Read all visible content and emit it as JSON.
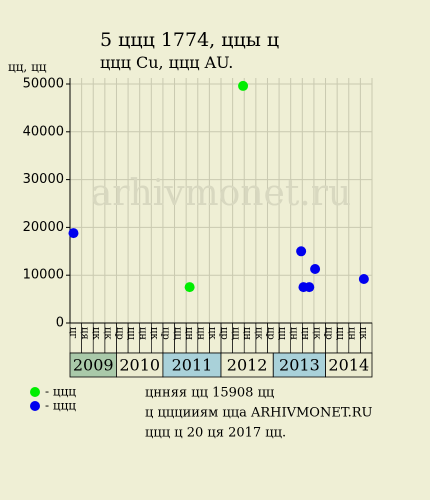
{
  "chart_data": {
    "type": "scatter",
    "title": "5 ццц 1774, ццы ц",
    "subtitle": "ццц Cu, ццц AU.",
    "y_label": "цц, цц",
    "watermark": "arhivmonet.ru",
    "categories": [
      "цг",
      "ця",
      "цк",
      "цк",
      "цр",
      "цц",
      "цн",
      "цк",
      "цр",
      "цц",
      "цн",
      "цн",
      "цк",
      "цр",
      "цц",
      "цн",
      "цк",
      "цр",
      "цц",
      "цн",
      "цн",
      "цк",
      "цр",
      "цц",
      "цн",
      "цк"
    ],
    "xlim": [
      0,
      26
    ],
    "years": [
      {
        "label": "2009",
        "from": 0,
        "to": 4,
        "color": "#a9c9a9"
      },
      {
        "label": "2010",
        "from": 4,
        "to": 8,
        "color": "#ebebcf"
      },
      {
        "label": "2011",
        "from": 8,
        "to": 13,
        "color": "#a9d1d9"
      },
      {
        "label": "2012",
        "from": 13,
        "to": 17.5,
        "color": "#ebebcf"
      },
      {
        "label": "2013",
        "from": 17.5,
        "to": 22,
        "color": "#a9d1d9"
      },
      {
        "label": "2014",
        "from": 22,
        "to": 26,
        "color": "#ebebcf"
      }
    ],
    "ylim": [
      0,
      50000
    ],
    "yticks": [
      0,
      10000,
      20000,
      30000,
      40000,
      50000
    ],
    "grid": true,
    "series": [
      {
        "name": "- ццц",
        "color": "#00ee00",
        "x": [
          10.3,
          14.9
        ],
        "values": [
          7500,
          49600
        ]
      },
      {
        "name": "- ццц",
        "color": "#0000ee",
        "x": [
          0.3,
          19.9,
          20.1,
          20.6,
          21.1,
          25.3
        ],
        "values": [
          18800,
          15000,
          7500,
          7500,
          11300,
          9200
        ]
      }
    ],
    "notes": [
      "цнняя цц 15908 цц",
      "ц цццииям цца ARHIVMONET.RU",
      "ццц ц 20 ця 2017 цц."
    ]
  }
}
